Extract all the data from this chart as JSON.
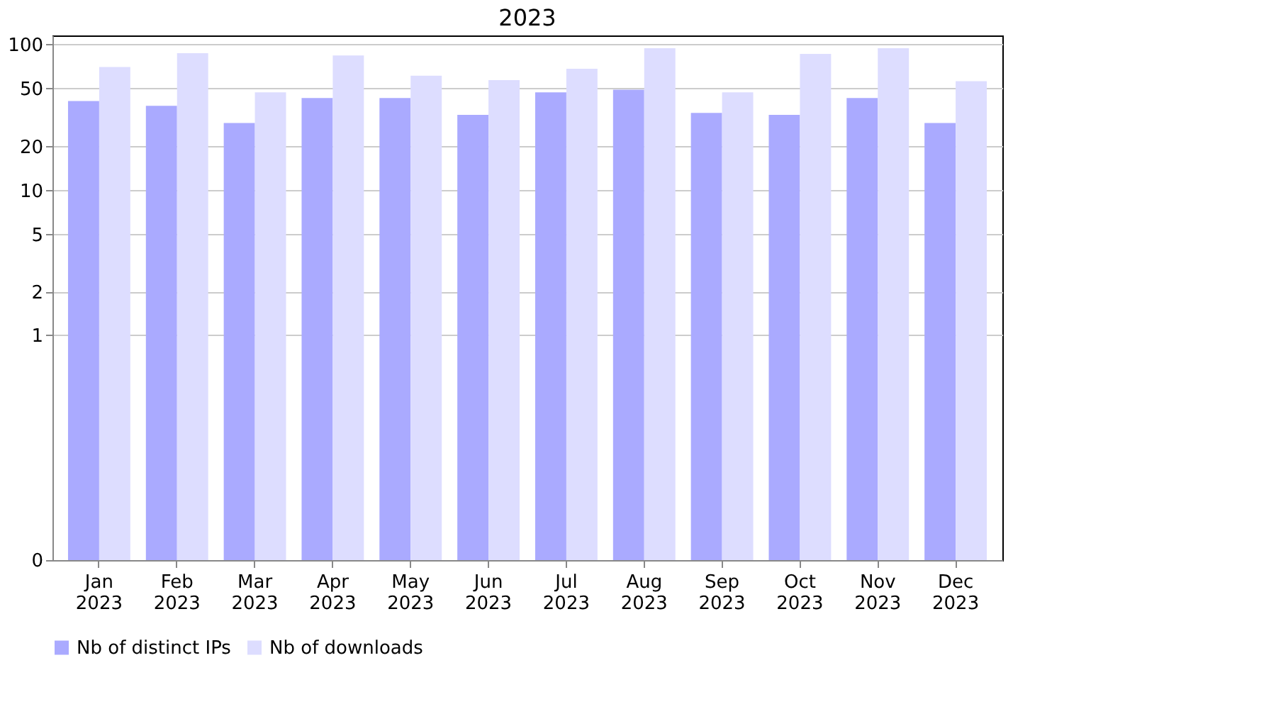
{
  "chart_data": {
    "type": "bar",
    "title": "2023",
    "categories": [
      "Jan\n2023",
      "Feb\n2023",
      "Mar\n2023",
      "Apr\n2023",
      "May\n2023",
      "Jun\n2023",
      "Jul\n2023",
      "Aug\n2023",
      "Sep\n2023",
      "Oct\n2023",
      "Nov\n2023",
      "Dec\n2023"
    ],
    "series": [
      {
        "name": "Nb of distinct IPs",
        "color": "#aaaaff",
        "values": [
          41,
          38,
          29,
          43,
          43,
          33,
          47,
          49,
          34,
          33,
          43,
          29
        ]
      },
      {
        "name": "Nb of downloads",
        "color": "#ddddff",
        "values": [
          70,
          87,
          47,
          84,
          61,
          57,
          68,
          94,
          47,
          86,
          94,
          56
        ]
      }
    ],
    "log": true,
    "ylim": [
      0,
      115
    ],
    "yticks": [
      0,
      1,
      2,
      5,
      10,
      20,
      50,
      100
    ],
    "grid": "y",
    "legend": "bottom"
  }
}
